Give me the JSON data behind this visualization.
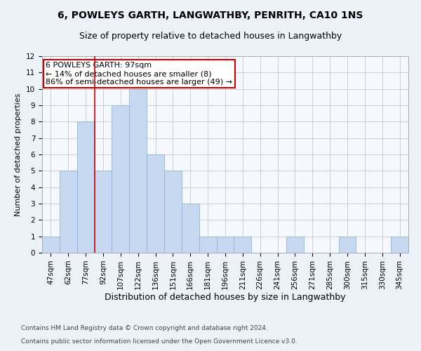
{
  "title1": "6, POWLEYS GARTH, LANGWATHBY, PENRITH, CA10 1NS",
  "title2": "Size of property relative to detached houses in Langwathby",
  "xlabel": "Distribution of detached houses by size in Langwathby",
  "ylabel": "Number of detached properties",
  "categories": [
    "47sqm",
    "62sqm",
    "77sqm",
    "92sqm",
    "107sqm",
    "122sqm",
    "136sqm",
    "151sqm",
    "166sqm",
    "181sqm",
    "196sqm",
    "211sqm",
    "226sqm",
    "241sqm",
    "256sqm",
    "271sqm",
    "285sqm",
    "300sqm",
    "315sqm",
    "330sqm",
    "345sqm"
  ],
  "values": [
    1,
    5,
    8,
    5,
    9,
    10,
    6,
    5,
    3,
    1,
    1,
    1,
    0,
    0,
    1,
    0,
    0,
    1,
    0,
    0,
    1
  ],
  "bar_color": "#c6d9f0",
  "bar_edgecolor": "#8db4d9",
  "redline_index": 3,
  "annotation_text": "6 POWLEYS GARTH: 97sqm\n← 14% of detached houses are smaller (8)\n86% of semi-detached houses are larger (49) →",
  "annotation_box_edgecolor": "#cc0000",
  "annotation_box_facecolor": "white",
  "redline_color": "#cc0000",
  "ylim": [
    0,
    12
  ],
  "yticks": [
    0,
    1,
    2,
    3,
    4,
    5,
    6,
    7,
    8,
    9,
    10,
    11,
    12
  ],
  "footer1": "Contains HM Land Registry data © Crown copyright and database right 2024.",
  "footer2": "Contains public sector information licensed under the Open Government Licence v3.0.",
  "title1_fontsize": 10,
  "title2_fontsize": 9,
  "xlabel_fontsize": 9,
  "ylabel_fontsize": 8,
  "tick_fontsize": 7.5,
  "footer_fontsize": 6.5,
  "annotation_fontsize": 8,
  "background_color": "#edf2f9",
  "plot_background_color": "#f5f8ff"
}
